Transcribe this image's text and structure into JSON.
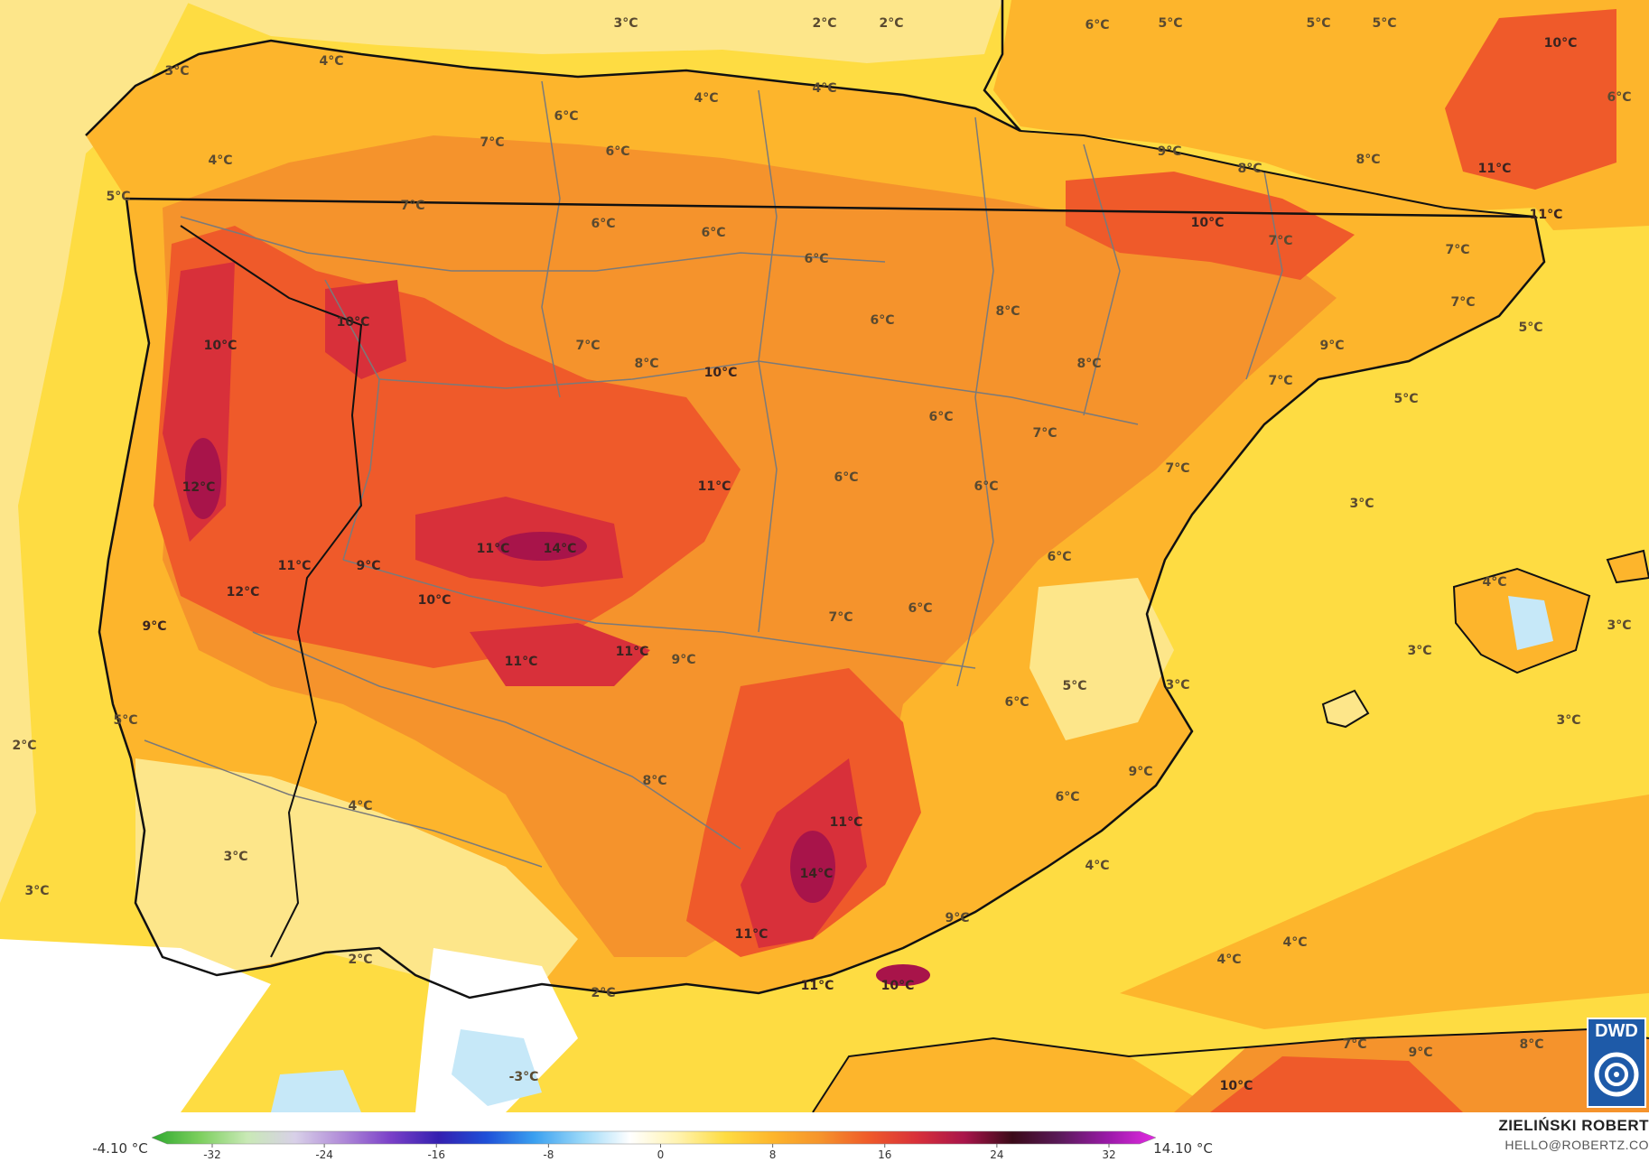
{
  "colors": {
    "sea": "#fedc42",
    "land_base": "#fdb52c",
    "warm": "#f5932c",
    "hot": "#ef5a2a",
    "hotter": "#d8303a",
    "hottest": "#a8144a",
    "cool": "#fde68a",
    "cold_land": "#ffffff",
    "cold_blue": "#c6e8f8",
    "coast_line": "#111111",
    "border_line": "#7a7a7a"
  },
  "labels": [
    {
      "text": "3°C"
    },
    {
      "text": "2°C"
    },
    {
      "text": "2°C"
    },
    {
      "text": "6°C"
    },
    {
      "text": "5°C"
    },
    {
      "text": "5°C"
    },
    {
      "text": "5°C"
    },
    {
      "text": "10°C"
    },
    {
      "text": "6°C"
    },
    {
      "text": "3°C"
    },
    {
      "text": "4°C"
    },
    {
      "text": "4°C"
    },
    {
      "text": "4°C"
    },
    {
      "text": "6°C"
    },
    {
      "text": "7°C"
    },
    {
      "text": "6°C"
    },
    {
      "text": "9°C"
    },
    {
      "text": "8°C"
    },
    {
      "text": "8°C"
    },
    {
      "text": "11°C"
    },
    {
      "text": "4°C"
    },
    {
      "text": "5°C"
    },
    {
      "text": "7°C"
    },
    {
      "text": "6°C"
    },
    {
      "text": "6°C"
    },
    {
      "text": "10°C"
    },
    {
      "text": "7°C"
    },
    {
      "text": "11°C"
    },
    {
      "text": "6°C"
    },
    {
      "text": "7°C"
    },
    {
      "text": "10°C"
    },
    {
      "text": "10°C"
    },
    {
      "text": "6°C"
    },
    {
      "text": "8°C"
    },
    {
      "text": "7°C"
    },
    {
      "text": "7°C"
    },
    {
      "text": "8°C"
    },
    {
      "text": "10°C"
    },
    {
      "text": "8°C"
    },
    {
      "text": "9°C"
    },
    {
      "text": "5°C"
    },
    {
      "text": "7°C"
    },
    {
      "text": "5°C"
    },
    {
      "text": "6°C"
    },
    {
      "text": "7°C"
    },
    {
      "text": "12°C"
    },
    {
      "text": "11°C"
    },
    {
      "text": "6°C"
    },
    {
      "text": "6°C"
    },
    {
      "text": "7°C"
    },
    {
      "text": "3°C"
    },
    {
      "text": "11°C"
    },
    {
      "text": "14°C"
    },
    {
      "text": "9°C"
    },
    {
      "text": "11°C"
    },
    {
      "text": "6°C"
    },
    {
      "text": "12°C"
    },
    {
      "text": "10°C"
    },
    {
      "text": "4°C"
    },
    {
      "text": "9°C"
    },
    {
      "text": "7°C"
    },
    {
      "text": "6°C"
    },
    {
      "text": "3°C"
    },
    {
      "text": "3°C"
    },
    {
      "text": "11°C"
    },
    {
      "text": "11°C"
    },
    {
      "text": "9°C"
    },
    {
      "text": "5°C"
    },
    {
      "text": "6°C"
    },
    {
      "text": "3°C"
    },
    {
      "text": "3°C"
    },
    {
      "text": "5°C"
    },
    {
      "text": "2°C"
    },
    {
      "text": "8°C"
    },
    {
      "text": "9°C"
    },
    {
      "text": "4°C"
    },
    {
      "text": "11°C"
    },
    {
      "text": "6°C"
    },
    {
      "text": "3°C"
    },
    {
      "text": "14°C"
    },
    {
      "text": "4°C"
    },
    {
      "text": "3°C"
    },
    {
      "text": "9°C"
    },
    {
      "text": "11°C"
    },
    {
      "text": "2°C"
    },
    {
      "text": "4°C"
    },
    {
      "text": "4°C"
    },
    {
      "text": "11°C"
    },
    {
      "text": "10°C"
    },
    {
      "text": "2°C"
    },
    {
      "text": "7°C"
    },
    {
      "text": "9°C"
    },
    {
      "text": "8°C"
    },
    {
      "text": "-3°C"
    },
    {
      "text": "10°C"
    }
  ],
  "legend": {
    "min_label": "-4.10 °C",
    "max_label": "14.10 °C",
    "ticks": [
      "-32",
      "-24",
      "-16",
      "-8",
      "0",
      "8",
      "16",
      "24",
      "32"
    ],
    "stops": [
      "#2ea82e",
      "#7ccf5e",
      "#c9e9b6",
      "#d8d0e8",
      "#b08ad8",
      "#7a40c8",
      "#3420b0",
      "#1e50d8",
      "#3aa0f0",
      "#9ad8f8",
      "#ffffff",
      "#fff3b0",
      "#fedc42",
      "#fdb52c",
      "#f5932c",
      "#ef5a2a",
      "#d8303a",
      "#a8144a",
      "#3a0a18",
      "#5a1a5a",
      "#9a1aa8",
      "#e22ae2"
    ]
  },
  "credit": {
    "name": "ZIELIŃSKI ROBERT",
    "email": "HELLO@ROBERTZ.CO"
  },
  "logo": {
    "text": "DWD"
  }
}
